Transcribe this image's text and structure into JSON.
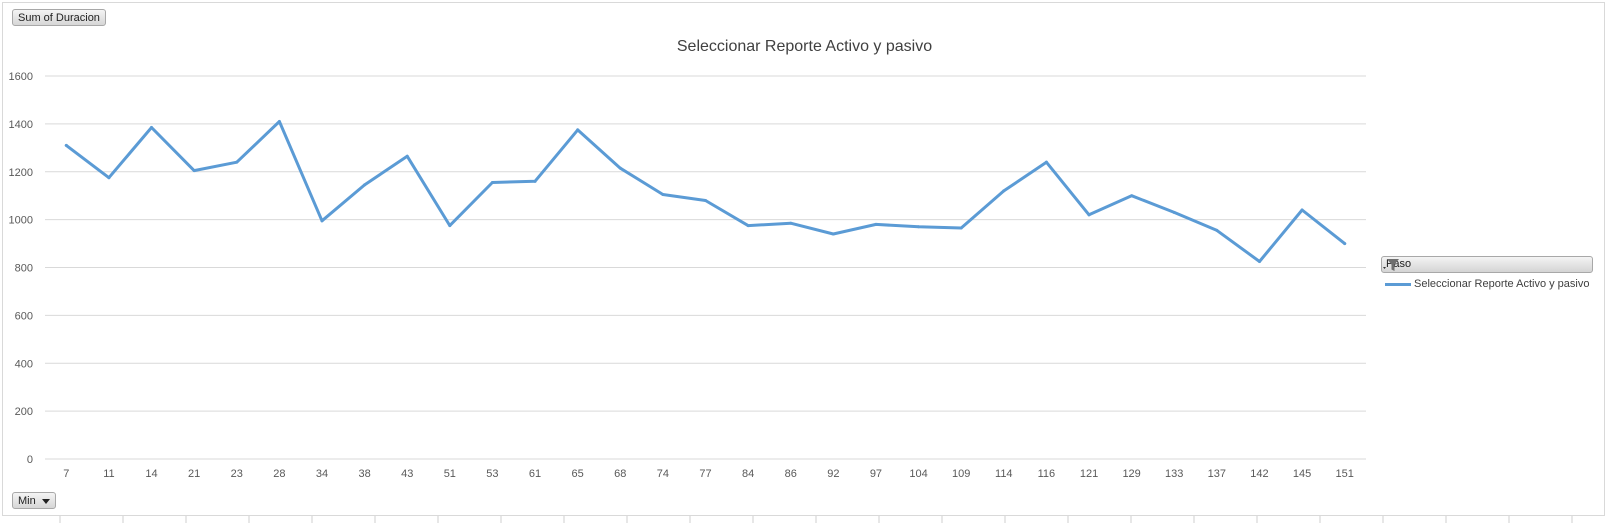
{
  "value_button": {
    "label": "Sum of Duracion"
  },
  "axis_button": {
    "label": "Min"
  },
  "legend_field": {
    "label": "Paso"
  },
  "colors": {
    "series": "#5B9BD5",
    "grid": "#d9d9d9"
  },
  "icons": {
    "legend_filter": "filter-dropdown-icon",
    "axis_dropdown": "chevron-down-icon"
  },
  "chart_data": {
    "type": "line",
    "title": "Seleccionar Reporte Activo y pasivo",
    "xlabel": "",
    "ylabel": "",
    "ylim": [
      0,
      1600
    ],
    "yticks": [
      0,
      200,
      400,
      600,
      800,
      1000,
      1200,
      1400,
      1600
    ],
    "grid": true,
    "legend_position": "right",
    "categories": [
      "7",
      "11",
      "14",
      "21",
      "23",
      "28",
      "34",
      "38",
      "43",
      "51",
      "53",
      "61",
      "65",
      "68",
      "74",
      "77",
      "84",
      "86",
      "92",
      "97",
      "104",
      "109",
      "114",
      "116",
      "121",
      "129",
      "133",
      "137",
      "142",
      "145",
      "151"
    ],
    "series": [
      {
        "name": "Seleccionar Reporte Activo y pasivo",
        "values": [
          1310,
          1175,
          1385,
          1205,
          1240,
          1410,
          995,
          1145,
          1265,
          975,
          1155,
          1160,
          1375,
          1215,
          1105,
          1080,
          975,
          985,
          940,
          980,
          970,
          965,
          1120,
          1240,
          1020,
          1100,
          1030,
          955,
          825,
          1040,
          900
        ]
      }
    ]
  }
}
